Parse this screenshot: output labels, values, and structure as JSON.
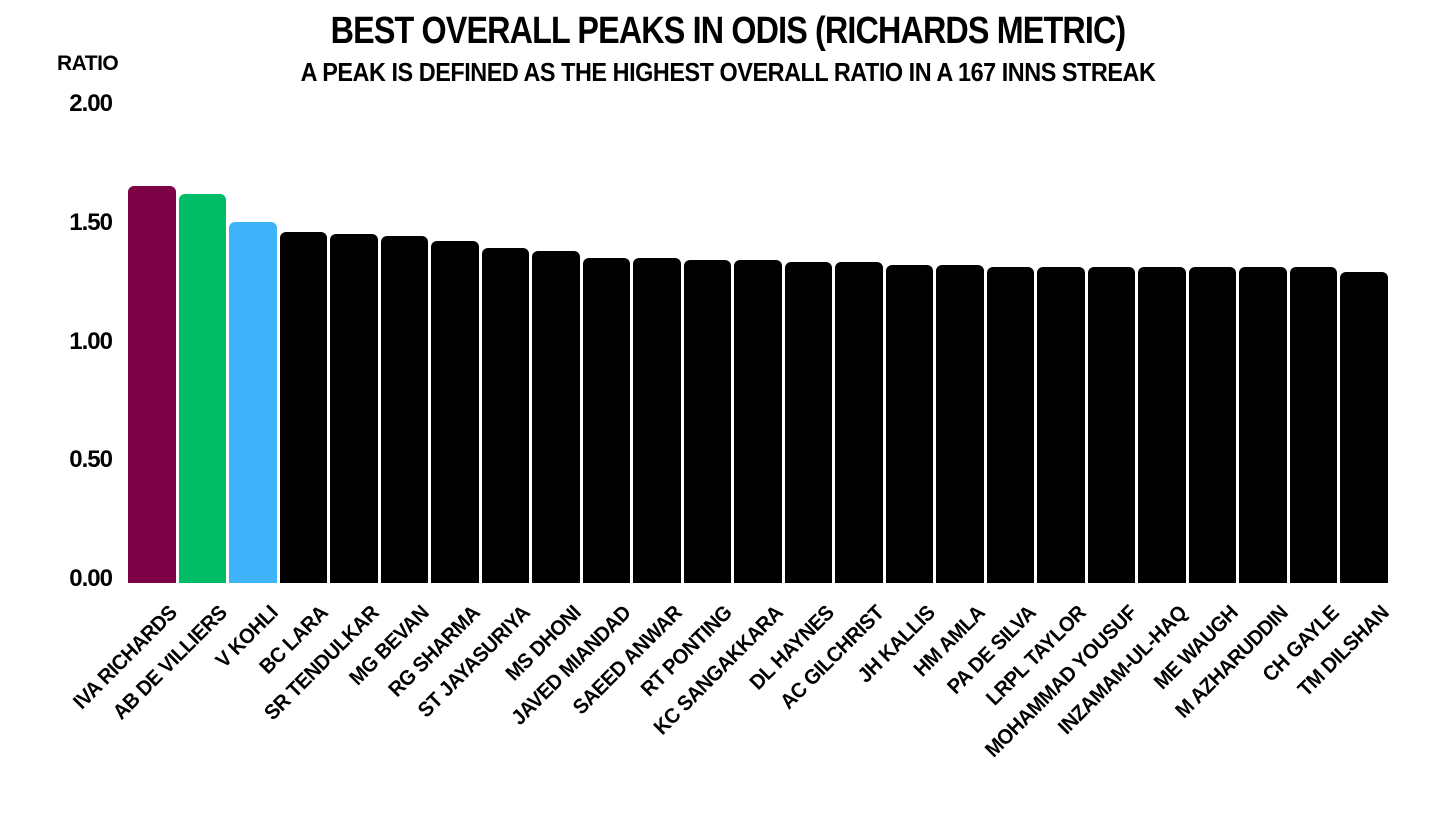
{
  "page": {
    "background": "#ffffff",
    "text_color": "#000000"
  },
  "chart_data": {
    "type": "bar",
    "title": "BEST OVERALL PEAKS IN ODIS (RICHARDS METRIC)",
    "subtitle": "A PEAK IS DEFINED AS THE HIGHEST OVERALL RATIO IN A 167 INNS STREAK",
    "ylabel": "RATIO",
    "xlabel": "",
    "ylim": [
      0,
      2
    ],
    "grid": false,
    "legend_position": "none",
    "yticks": [
      {
        "value": 0.0,
        "label": "0.00"
      },
      {
        "value": 0.5,
        "label": "0.50"
      },
      {
        "value": 1.0,
        "label": "1.00"
      },
      {
        "value": 1.5,
        "label": "1.50"
      },
      {
        "value": 2.0,
        "label": "2.00"
      }
    ],
    "categories": [
      "IVA RICHARDS",
      "AB DE VILLIERS",
      "V KOHLI",
      "BC LARA",
      "SR TENDULKAR",
      "MG BEVAN",
      "RG SHARMA",
      "ST JAYASURIYA",
      "MS DHONI",
      "JAVED MIANDAD",
      "SAEED ANWAR",
      "RT PONTING",
      "KC SANGAKKARA",
      "DL HAYNES",
      "AC GILCHRIST",
      "JH KALLIS",
      "HM AMLA",
      "PA DE SILVA",
      "LRPL TAYLOR",
      "MOHAMMAD YOUSUF",
      "INZAMAM-UL-HAQ",
      "ME WAUGH",
      "M AZHARUDDIN",
      "CH GAYLE",
      "TM DILSHAN"
    ],
    "values": [
      1.67,
      1.64,
      1.52,
      1.48,
      1.47,
      1.46,
      1.44,
      1.41,
      1.4,
      1.37,
      1.37,
      1.36,
      1.36,
      1.35,
      1.35,
      1.34,
      1.34,
      1.33,
      1.33,
      1.33,
      1.33,
      1.33,
      1.33,
      1.33,
      1.31
    ],
    "bar_colors": [
      "#7D0245",
      "#00BC66",
      "#3EB3F9",
      "#000000",
      "#000000",
      "#000000",
      "#000000",
      "#000000",
      "#000000",
      "#000000",
      "#000000",
      "#000000",
      "#000000",
      "#000000",
      "#000000",
      "#000000",
      "#000000",
      "#000000",
      "#000000",
      "#000000",
      "#000000",
      "#000000",
      "#000000",
      "#000000",
      "#000000"
    ],
    "highlight_legend": {
      "IVA RICHARDS": "#7D0245",
      "AB DE VILLIERS": "#00BC66",
      "V KOHLI": "#3EB3F9",
      "others": "#000000"
    }
  }
}
